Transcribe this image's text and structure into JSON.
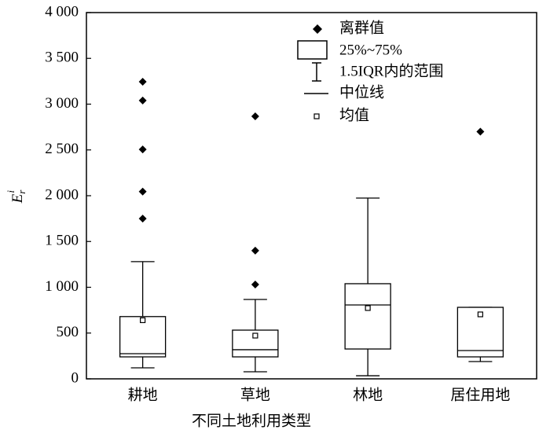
{
  "chart_data": {
    "type": "box",
    "ylabel": {
      "base": "E",
      "sub": "r",
      "sup": "i"
    },
    "xlabel": "不同土地利用类型",
    "categories": [
      "耕地",
      "草地",
      "林地",
      "居住用地"
    ],
    "boxes": [
      {
        "min": 120,
        "q1": 240,
        "median": 275,
        "q3": 680,
        "max": 1280,
        "mean": 640,
        "outliers": [
          3245,
          3040,
          2505,
          2045,
          1750
        ]
      },
      {
        "min": 77,
        "q1": 240,
        "median": 318,
        "q3": 532,
        "max": 867,
        "mean": 472,
        "outliers": [
          2867,
          1400,
          1030
        ]
      },
      {
        "min": 34,
        "q1": 326,
        "median": 807,
        "q3": 1039,
        "max": 1974,
        "mean": 773,
        "outliers": []
      },
      {
        "min": 189,
        "q1": 240,
        "median": 309,
        "q3": 781,
        "max": 781,
        "mean": 704,
        "outliers": [
          2700
        ]
      }
    ],
    "ylim": [
      0,
      4000
    ],
    "yticks": [
      0,
      500,
      {
        "value": 1000,
        "label": "1 000"
      },
      {
        "value": 1500,
        "label": "1 500"
      },
      {
        "value": 2000,
        "label": "2 000"
      },
      {
        "value": 2500,
        "label": "2 500"
      },
      {
        "value": 3000,
        "label": "3 000"
      },
      {
        "value": 3500,
        "label": "3 500"
      },
      {
        "value": 4000,
        "label": "4 000"
      }
    ],
    "legend": [
      "离群值",
      "25%~75%",
      "1.5IQR内的范围",
      "中位线",
      "均值"
    ]
  }
}
